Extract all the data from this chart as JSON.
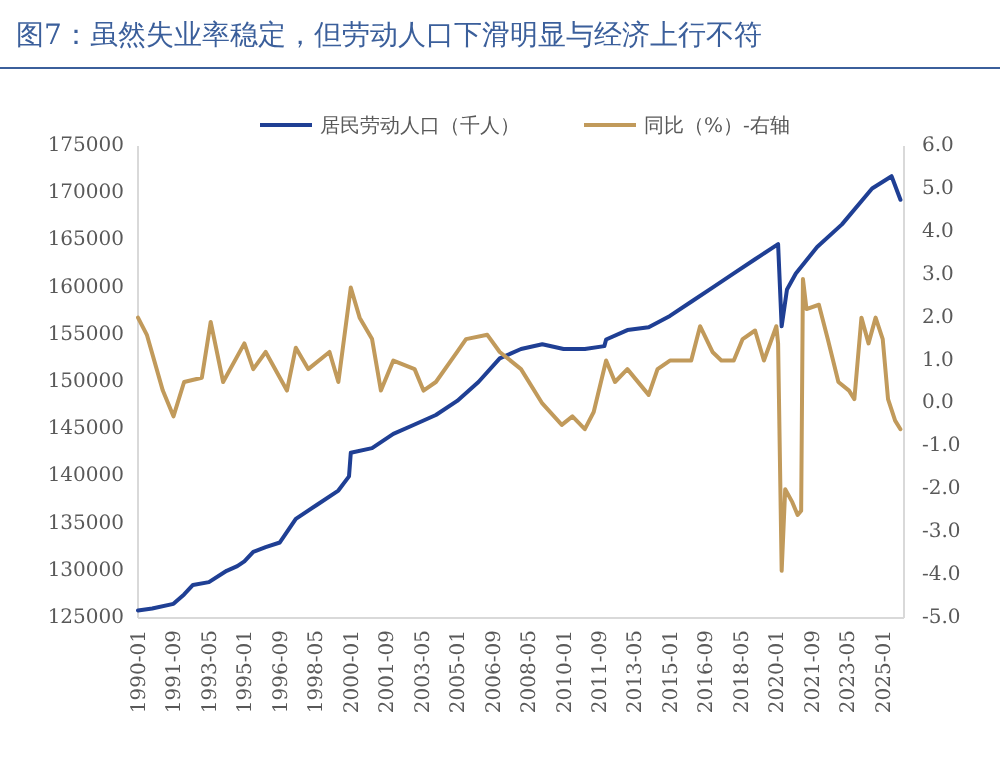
{
  "chart_data": {
    "type": "line",
    "title": "图7：虽然失业率稳定，但劳动人口下滑明显与经济上行不符",
    "legend": "top",
    "grid": false,
    "marker": "none",
    "line_style": "solid",
    "xlim": [
      "1990-01",
      "2026-01"
    ],
    "xticks": [
      "1990-01",
      "1991-09",
      "1993-05",
      "1995-01",
      "1996-09",
      "1998-05",
      "2000-01",
      "2001-09",
      "2003-05",
      "2005-01",
      "2006-09",
      "2008-05",
      "2010-01",
      "2011-09",
      "2013-05",
      "2015-01",
      "2016-09",
      "2018-05",
      "2020-01",
      "2021-09",
      "2023-05",
      "2025-01"
    ],
    "ylim": [
      125000,
      175000
    ],
    "yticks": [
      125000,
      130000,
      135000,
      140000,
      145000,
      150000,
      155000,
      160000,
      165000,
      170000,
      175000
    ],
    "y2lim": [
      -5,
      6
    ],
    "y2ticks": [
      {
        "value": -5,
        "label": "-5.0"
      },
      {
        "value": -4,
        "label": "-4.0"
      },
      {
        "value": -3,
        "label": "-3.0"
      },
      {
        "value": -2,
        "label": "-2.0"
      },
      {
        "value": -1,
        "label": "-1.0"
      },
      {
        "value": 0,
        "label": "0.0"
      },
      {
        "value": 1,
        "label": "1.0"
      },
      {
        "value": 2,
        "label": "2.0"
      },
      {
        "value": 3,
        "label": "3.0"
      },
      {
        "value": 4,
        "label": "4.0"
      },
      {
        "value": 5,
        "label": "5.0"
      },
      {
        "value": 6,
        "label": "6.0"
      }
    ],
    "series": [
      {
        "name": "居民劳动人口（千人）",
        "color": "#1f3f94",
        "x": [
          "1990-01",
          "1990-09",
          "1991-09",
          "1992-03",
          "1992-08",
          "1993-05",
          "1994-03",
          "1994-09",
          "1995-01",
          "1995-06",
          "1996-01",
          "1996-09",
          "1997-06",
          "1998-06",
          "1999-06",
          "1999-12",
          "2000-01",
          "2001-01",
          "2002-01",
          "2003-01",
          "2004-01",
          "2005-01",
          "2006-01",
          "2007-01",
          "2008-01",
          "2009-01",
          "2010-01",
          "2011-01",
          "2011-12",
          "2012-01",
          "2013-01",
          "2014-01",
          "2015-01",
          "2016-01",
          "2017-01",
          "2018-01",
          "2019-01",
          "2020-02",
          "2020-04",
          "2020-07",
          "2020-12",
          "2021-12",
          "2023-02",
          "2024-07",
          "2025-06",
          "2025-11"
        ],
        "values": [
          125800,
          126000,
          126500,
          127500,
          128500,
          128800,
          130000,
          130500,
          131000,
          132000,
          132500,
          133000,
          135500,
          137000,
          138500,
          140000,
          142500,
          143000,
          144500,
          145500,
          146500,
          148000,
          150000,
          152500,
          153500,
          154000,
          153500,
          153500,
          153800,
          154500,
          155500,
          155800,
          157000,
          158500,
          160000,
          161500,
          163000,
          164600,
          155900,
          159800,
          161500,
          164300,
          166700,
          170500,
          171800,
          169300
        ]
      },
      {
        "name": "同比（%）-右轴",
        "color": "#c19a5b",
        "axis": "y2",
        "x": [
          "1990-01",
          "1990-06",
          "1991-03",
          "1991-09",
          "1992-03",
          "1993-01",
          "1993-06",
          "1994-01",
          "1995-01",
          "1995-06",
          "1996-01",
          "1997-01",
          "1997-06",
          "1998-01",
          "1999-01",
          "1999-06",
          "2000-01",
          "2000-06",
          "2001-01",
          "2001-06",
          "2002-01",
          "2003-01",
          "2003-06",
          "2004-01",
          "2005-01",
          "2005-06",
          "2006-06",
          "2007-01",
          "2008-01",
          "2009-01",
          "2009-12",
          "2010-06",
          "2011-01",
          "2011-06",
          "2012-01",
          "2012-06",
          "2013-01",
          "2014-01",
          "2014-06",
          "2015-01",
          "2016-01",
          "2016-06",
          "2017-01",
          "2017-06",
          "2018-01",
          "2018-06",
          "2019-01",
          "2019-06",
          "2020-01",
          "2020-02",
          "2020-04",
          "2020-06",
          "2020-10",
          "2021-01",
          "2021-03",
          "2021-04",
          "2021-06",
          "2022-01",
          "2022-06",
          "2022-12",
          "2023-06",
          "2023-09",
          "2024-01",
          "2024-05",
          "2024-09",
          "2025-01",
          "2025-04",
          "2025-08",
          "2025-11"
        ],
        "values": [
          2.0,
          1.6,
          0.3,
          -0.3,
          0.5,
          0.6,
          1.9,
          0.5,
          1.4,
          0.8,
          1.2,
          0.3,
          1.3,
          0.8,
          1.2,
          0.5,
          2.7,
          2.0,
          1.5,
          0.3,
          1.0,
          0.8,
          0.3,
          0.5,
          1.2,
          1.5,
          1.6,
          1.2,
          0.8,
          0.0,
          -0.5,
          -0.3,
          -0.6,
          -0.2,
          1.0,
          0.5,
          0.8,
          0.2,
          0.8,
          1.0,
          1.0,
          1.8,
          1.2,
          1.0,
          1.0,
          1.5,
          1.7,
          1.0,
          1.8,
          1.4,
          -3.9,
          -2.0,
          -2.3,
          -2.6,
          -2.5,
          2.9,
          2.2,
          2.3,
          1.5,
          0.5,
          0.3,
          0.1,
          2.0,
          1.4,
          2.0,
          1.5,
          0.1,
          -0.4,
          -0.6
        ]
      }
    ]
  }
}
